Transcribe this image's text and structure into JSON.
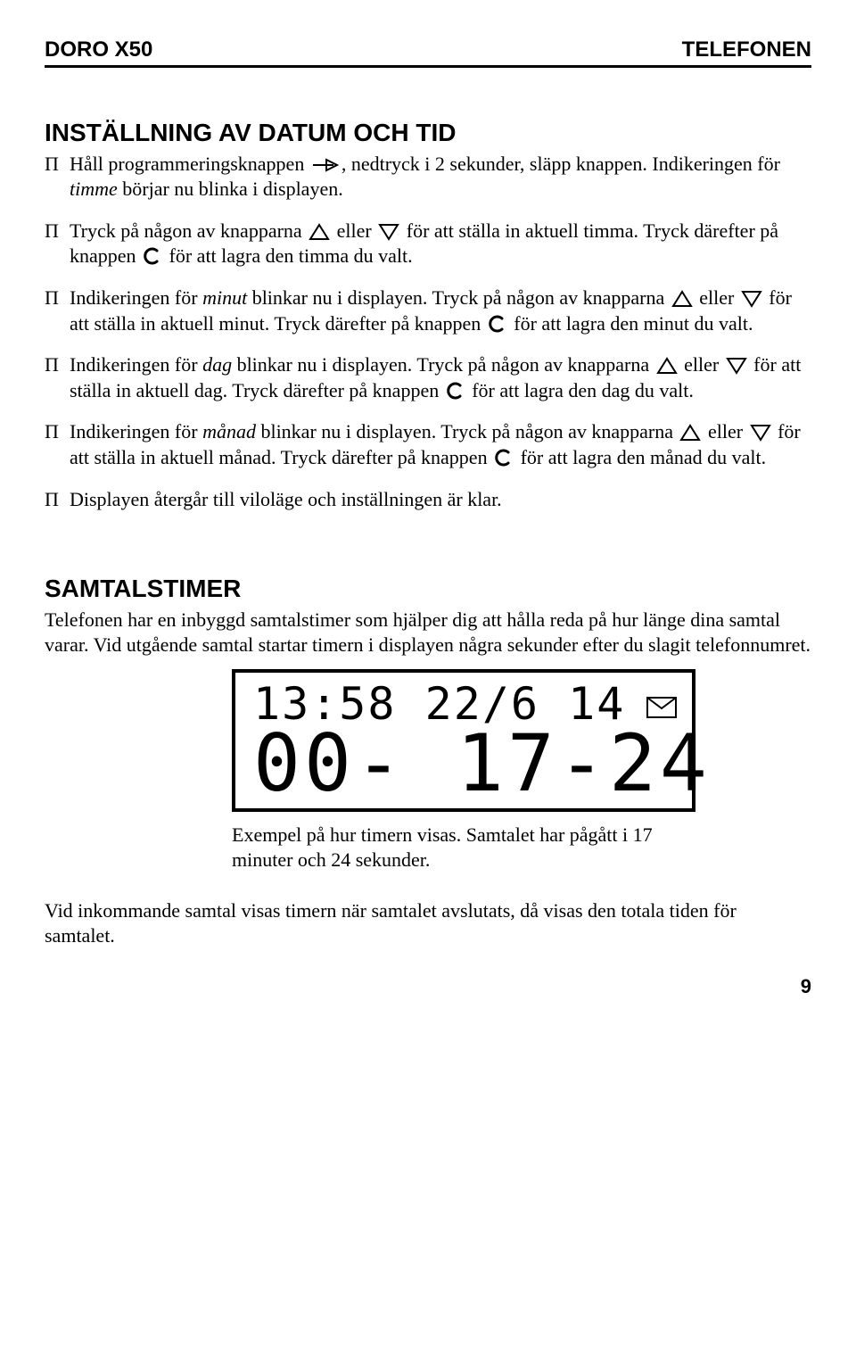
{
  "header": {
    "left": "DORO X50",
    "right": "TELEFONEN"
  },
  "section1": {
    "title": "INSTÄLLNING AV DATUM OCH TID",
    "items": [
      {
        "parts": [
          {
            "t": "Håll programmeringsknappen "
          },
          {
            "icon": "prog"
          },
          {
            "t": ", nedtryck i 2 sekunder, släpp knappen. Indikeringen för "
          },
          {
            "em": "timme"
          },
          {
            "t": " börjar nu blinka i displayen."
          }
        ]
      },
      {
        "parts": [
          {
            "t": "Tryck på någon av knapparna "
          },
          {
            "icon": "up"
          },
          {
            "t": " eller "
          },
          {
            "icon": "down"
          },
          {
            "t": " för att ställa in aktuell timma. Tryck därefter på knappen "
          },
          {
            "icon": "c"
          },
          {
            "t": " för att lagra den timma du valt."
          }
        ]
      },
      {
        "parts": [
          {
            "t": "Indikeringen för "
          },
          {
            "em": "minut"
          },
          {
            "t": " blinkar nu i displayen. Tryck på någon av knapparna "
          },
          {
            "icon": "up"
          },
          {
            "t": " eller "
          },
          {
            "icon": "down"
          },
          {
            "t": " för att ställa in aktuell minut. Tryck därefter på knappen "
          },
          {
            "icon": "c"
          },
          {
            "t": " för att lagra den minut du valt."
          }
        ]
      },
      {
        "parts": [
          {
            "t": "Indikeringen för "
          },
          {
            "em": "dag"
          },
          {
            "t": " blinkar nu i displayen. Tryck på någon av knapparna "
          },
          {
            "icon": "up"
          },
          {
            "t": " eller "
          },
          {
            "icon": "down"
          },
          {
            "t": " för att ställa in aktuell dag. Tryck därefter på knappen "
          },
          {
            "icon": "c"
          },
          {
            "t": " för att lagra den dag du valt."
          }
        ]
      },
      {
        "parts": [
          {
            "t": "Indikeringen för "
          },
          {
            "em": "månad"
          },
          {
            "t": " blinkar nu i displayen. Tryck på någon av knapparna "
          },
          {
            "icon": "up"
          },
          {
            "t": " eller "
          },
          {
            "icon": "down"
          },
          {
            "t": " för att ställa in aktuell månad. Tryck därefter på knappen "
          },
          {
            "icon": "c"
          },
          {
            "t": " för att lagra den månad du valt."
          }
        ]
      },
      {
        "parts": [
          {
            "t": "Displayen återgår till viloläge och inställningen är klar."
          }
        ]
      }
    ]
  },
  "section2": {
    "title": "SAMTALSTIMER",
    "intro": "Telefonen har en inbyggd samtalstimer som hjälper dig att hålla reda på hur länge dina samtal varar. Vid utgående samtal startar timern i displayen några sekunder efter du slagit telefonnumret.",
    "display": {
      "top_left": "13:58 22/6",
      "top_right": "14",
      "bottom": "00- 17-24"
    },
    "caption": "Exempel på hur timern visas. Samtalet har pågått i 17 minuter och 24 sekunder.",
    "outro": "Vid inkommande samtal visas timern när samtalet avslutats, då visas den totala tiden för samtalet."
  },
  "page": "9",
  "icons": {
    "up_svg": "triangle-up",
    "down_svg": "triangle-down",
    "c_svg": "c-button",
    "prog_svg": "prog-arrow"
  }
}
